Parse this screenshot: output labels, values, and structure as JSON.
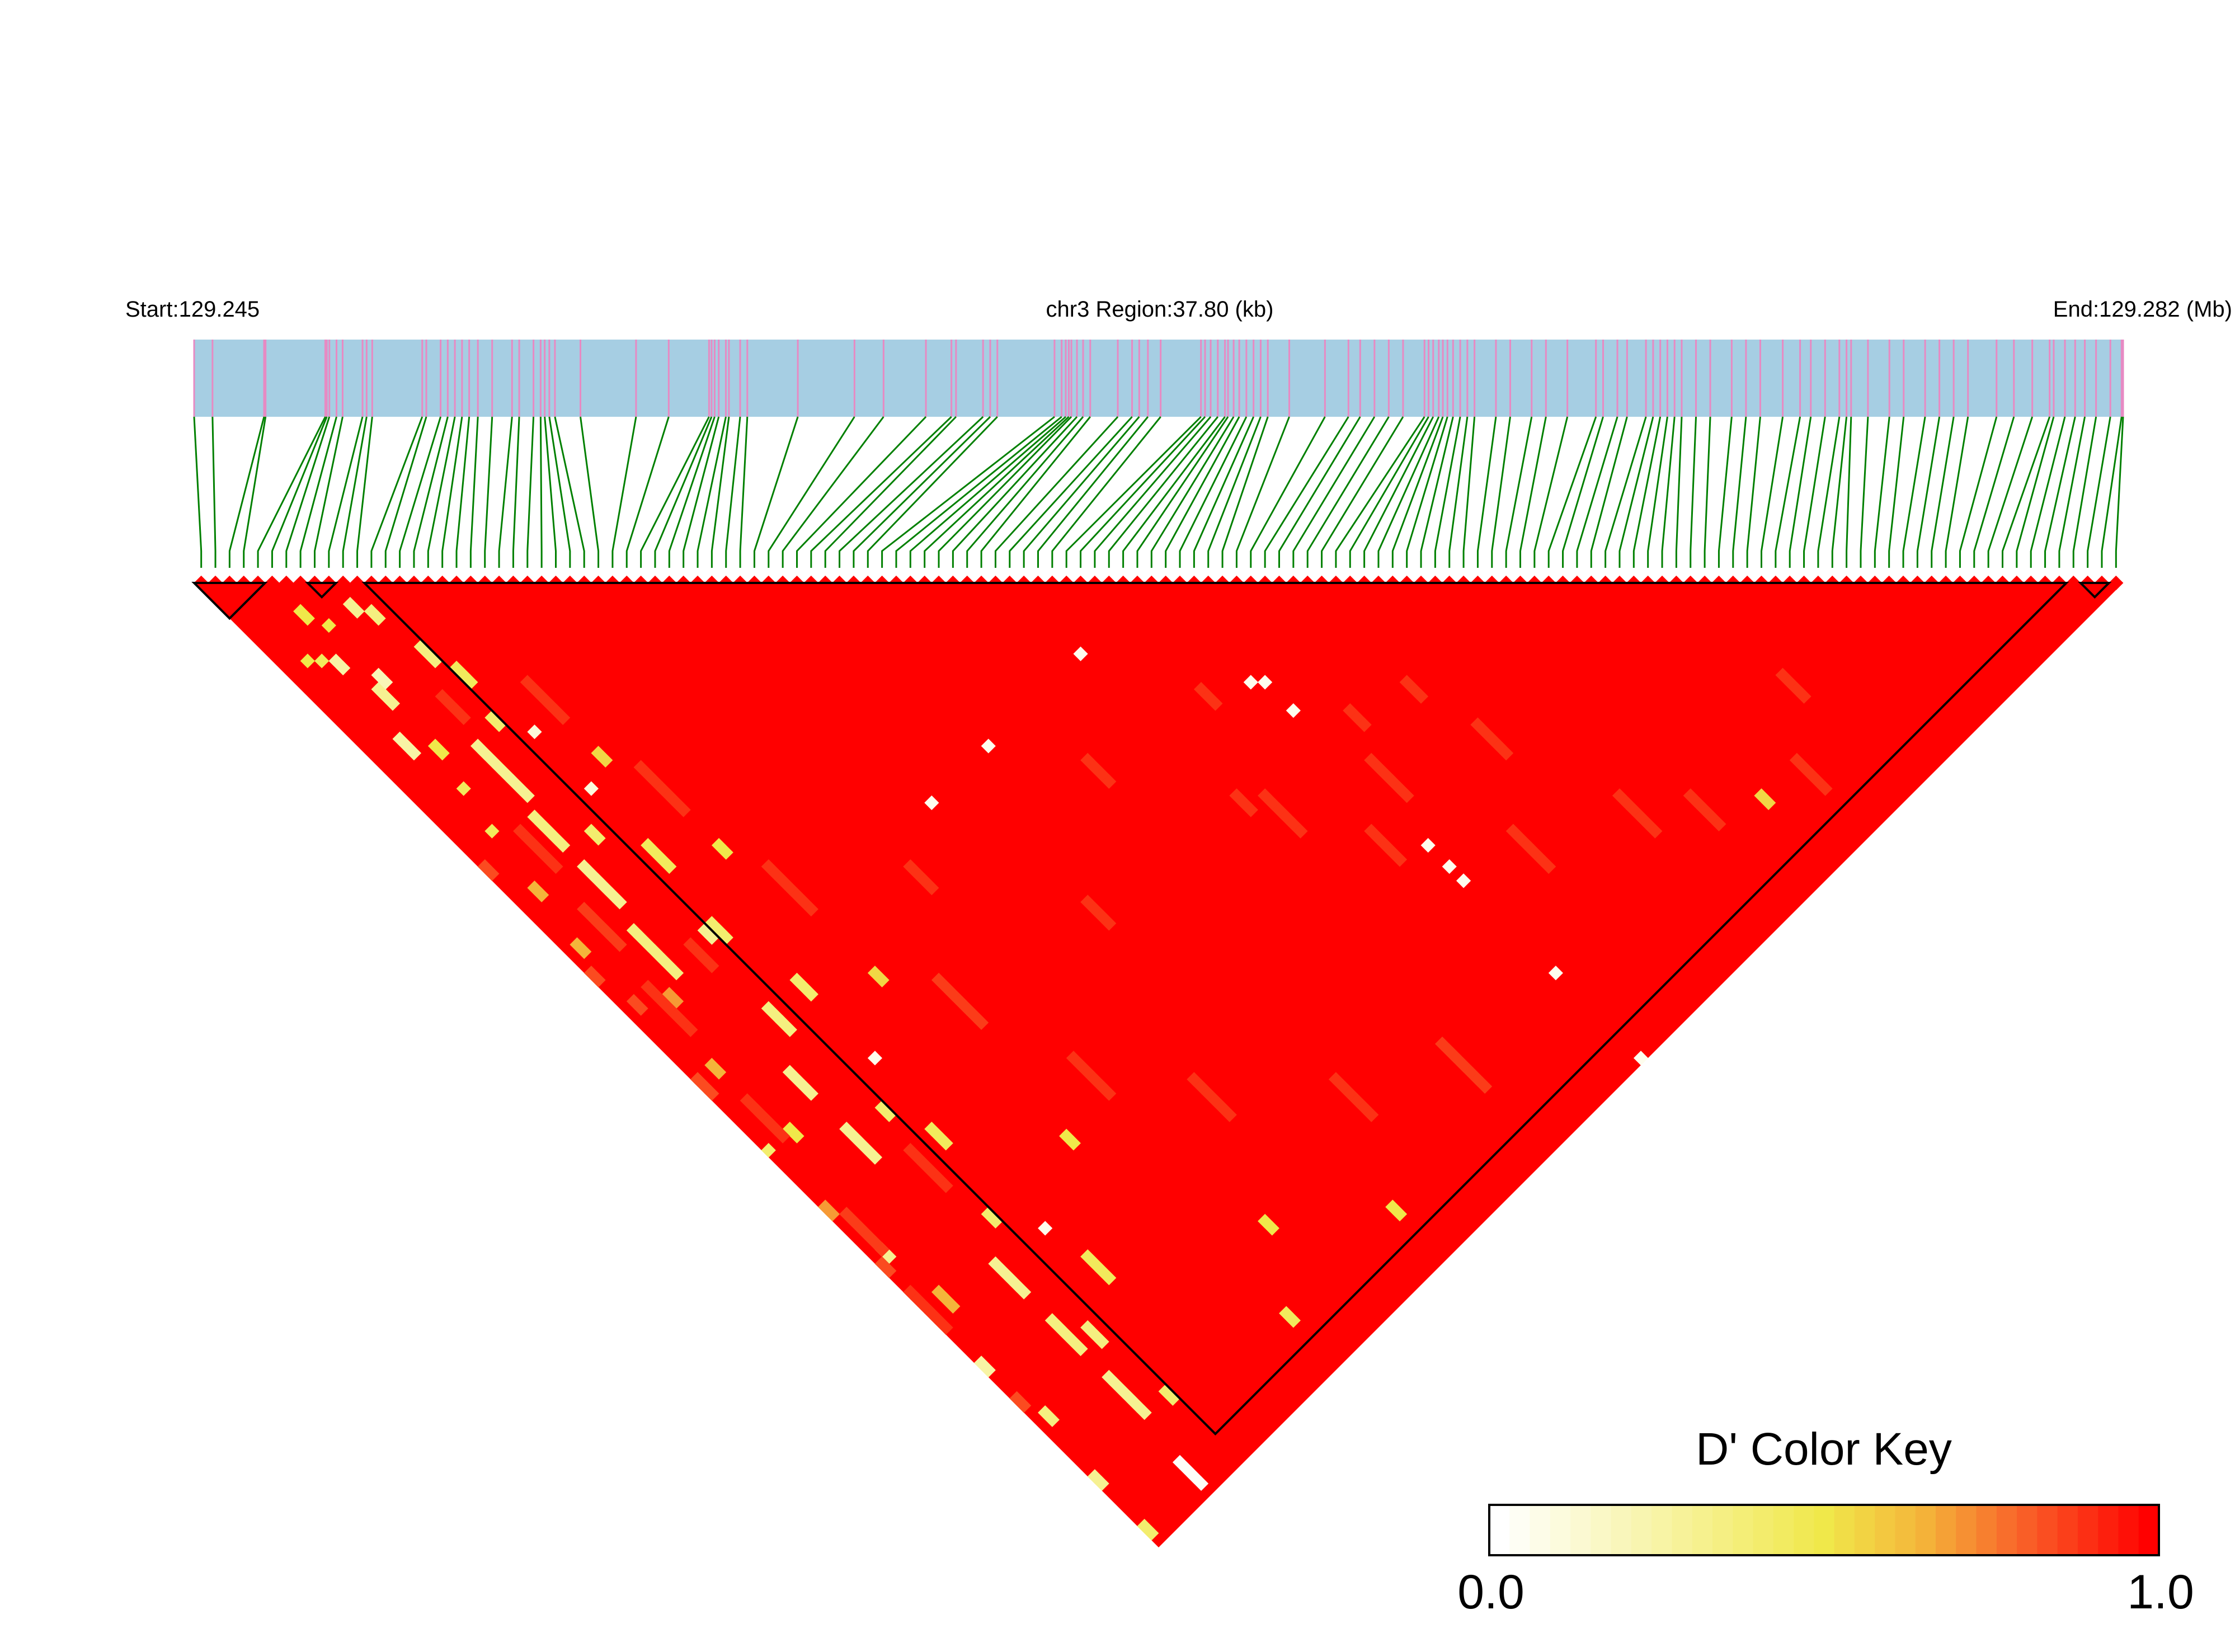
{
  "chart_data": {
    "type": "heatmap",
    "header": {
      "start_label": "Start:129.245",
      "region_label": "chr3 Region:37.80 (kb)",
      "end_label": "End:129.282 (Mb)"
    },
    "region_kb": [
      0,
      37.8
    ],
    "snp_positions_kb": [
      0.0,
      0.36,
      1.37,
      1.4,
      2.57,
      2.6,
      2.65,
      2.79,
      2.91,
      3.3,
      3.38,
      3.49,
      4.47,
      4.55,
      4.83,
      4.97,
      5.11,
      5.25,
      5.39,
      5.56,
      5.84,
      6.23,
      6.37,
      6.65,
      6.79,
      6.87,
      6.96,
      7.07,
      7.57,
      8.66,
      9.3,
      10.09,
      10.14,
      10.2,
      10.28,
      10.42,
      10.48,
      10.7,
      10.84,
      11.83,
      12.94,
      13.51,
      14.34,
      14.84,
      14.93,
      15.46,
      15.6,
      15.74,
      16.86,
      17.0,
      17.08,
      17.14,
      17.19,
      17.3,
      17.42,
      17.56,
      18.1,
      18.38,
      18.52,
      18.69,
      18.94,
      19.73,
      19.81,
      19.92,
      20.06,
      20.2,
      20.26,
      20.37,
      20.48,
      20.62,
      20.76,
      20.9,
      21.04,
      21.46,
      22.16,
      22.62,
      22.85,
      23.13,
      23.41,
      23.69,
      24.11,
      24.19,
      24.28,
      24.39,
      24.47,
      24.56,
      24.67,
      24.81,
      24.95,
      25.09,
      25.51,
      25.79,
      26.21,
      26.49,
      26.91,
      27.47,
      27.61,
      27.89,
      28.08,
      28.45,
      28.59,
      28.73,
      28.87,
      29.01,
      29.15,
      29.43,
      29.71,
      30.13,
      30.41,
      30.69,
      31.13,
      31.47,
      31.68,
      31.96,
      32.24,
      32.38,
      32.47,
      32.8,
      33.22,
      33.5,
      33.92,
      34.2,
      34.48,
      34.76,
      35.32,
      35.66,
      36.02,
      36.36,
      36.44,
      36.66,
      36.86,
      37.05,
      37.27,
      37.55,
      37.77,
      37.8
    ],
    "default_d_prime": 1.0,
    "d_prime_segments_note_format": "[snp_i, snp_j_from, snp_j_to, D']",
    "d_prime_segments": [
      [
        8,
        31,
        38,
        0.3
      ],
      [
        7,
        40,
        44,
        0.35
      ],
      [
        7,
        47,
        52,
        0.3
      ],
      [
        6,
        55,
        61,
        0.35
      ],
      [
        7,
        76,
        79,
        0.3
      ],
      [
        7,
        84,
        88,
        0.3
      ],
      [
        8,
        104,
        108,
        0.3
      ],
      [
        8,
        112,
        116,
        0.35
      ],
      [
        8,
        120,
        125,
        0.3
      ],
      [
        7,
        131,
        134,
        0.02
      ],
      [
        5,
        20,
        22,
        0.3
      ],
      [
        4,
        15,
        16,
        0.25
      ],
      [
        3,
        14,
        14,
        0.45
      ],
      [
        2,
        13,
        13,
        0.5
      ],
      [
        5,
        28,
        29,
        0.5
      ],
      [
        4,
        33,
        33,
        0.45
      ],
      [
        3,
        38,
        38,
        0.45
      ],
      [
        6,
        19,
        20,
        0.2
      ],
      [
        3,
        25,
        27,
        0.25
      ],
      [
        2,
        45,
        46,
        0.65
      ],
      [
        1,
        52,
        53,
        0.65
      ],
      [
        4,
        62,
        63,
        0.7
      ],
      [
        2,
        70,
        71,
        0.65
      ],
      [
        3,
        80,
        81,
        0.5
      ],
      [
        0,
        88,
        89,
        0.7
      ],
      [
        1,
        95,
        96,
        0.3
      ],
      [
        2,
        102,
        104,
        0.65
      ],
      [
        0,
        110,
        111,
        0.25
      ],
      [
        1,
        118,
        119,
        0.35
      ],
      [
        0,
        126,
        127,
        0.3
      ],
      [
        0,
        133,
        134,
        0.4
      ],
      [
        9,
        25,
        28,
        0.9
      ],
      [
        5,
        40,
        45,
        0.9
      ],
      [
        4,
        50,
        55,
        0.88
      ],
      [
        3,
        60,
        66,
        0.9
      ],
      [
        2,
        75,
        80,
        0.9
      ],
      [
        1,
        90,
        95,
        0.88
      ],
      [
        0,
        100,
        105,
        0.9
      ],
      [
        9,
        60,
        63,
        0.9
      ],
      [
        10,
        90,
        95,
        0.9
      ],
      [
        0,
        40,
        41,
        0.85
      ],
      [
        0,
        55,
        56,
        0.85
      ],
      [
        0,
        70,
        72,
        0.85
      ],
      [
        0,
        80,
        80,
        0.4
      ],
      [
        0,
        96,
        97,
        0.85
      ],
      [
        0,
        115,
        116,
        0.85
      ],
      [
        1,
        60,
        61,
        0.85
      ],
      [
        11,
        20,
        22,
        0.35
      ],
      [
        11,
        30,
        31,
        0.4
      ],
      [
        10,
        45,
        46,
        0.4
      ],
      [
        11,
        60,
        61,
        0.3
      ],
      [
        10,
        70,
        73,
        0.35
      ],
      [
        11,
        85,
        86,
        0.4
      ],
      [
        11,
        100,
        101,
        0.4
      ],
      [
        10,
        115,
        117,
        0.35
      ],
      [
        11,
        125,
        126,
        0.4
      ],
      [
        9,
        12,
        13,
        0.3
      ],
      [
        10,
        14,
        15,
        0.35
      ],
      [
        6,
        12,
        12,
        0.5
      ],
      [
        5,
        9,
        10,
        0.5
      ],
      [
        57,
        67,
        67,
        0.05
      ],
      [
        67,
        81,
        81,
        0.05
      ],
      [
        68,
        82,
        82,
        0.05
      ],
      [
        68,
        86,
        86,
        0.05
      ],
      [
        44,
        67,
        67,
        0.05
      ],
      [
        36,
        67,
        67,
        0.05
      ],
      [
        68,
        105,
        105,
        0.05
      ],
      [
        68,
        108,
        108,
        0.05
      ],
      [
        68,
        110,
        110,
        0.05
      ],
      [
        68,
        123,
        123,
        0.05
      ],
      [
        68,
        135,
        135,
        0.05
      ],
      [
        14,
        105,
        105,
        0.05
      ],
      [
        14,
        81,
        81,
        0.05
      ],
      [
        13,
        42,
        42,
        0.1
      ],
      [
        13,
        34,
        34,
        0.1
      ],
      [
        12,
        24,
        26,
        0.45
      ],
      [
        13,
        50,
        53,
        0.45
      ],
      [
        12,
        60,
        62,
        0.4
      ],
      [
        14,
        70,
        72,
        0.4
      ],
      [
        13,
        90,
        92,
        0.45
      ],
      [
        15,
        110,
        113,
        0.45
      ],
      [
        16,
        40,
        41,
        0.55
      ],
      [
        18,
        55,
        56,
        0.5
      ],
      [
        20,
        75,
        76,
        0.55
      ],
      [
        22,
        100,
        101,
        0.5
      ],
      [
        25,
        128,
        129,
        0.45
      ],
      [
        30,
        120,
        121,
        0.5
      ],
      [
        40,
        128,
        129,
        0.5
      ],
      [
        95,
        125,
        126,
        0.55
      ],
      [
        16,
        30,
        35,
        0.9
      ],
      [
        18,
        44,
        50,
        0.9
      ],
      [
        20,
        60,
        66,
        0.9
      ],
      [
        24,
        80,
        86,
        0.88
      ],
      [
        28,
        95,
        100,
        0.9
      ],
      [
        35,
        105,
        110,
        0.9
      ],
      [
        45,
        115,
        120,
        0.9
      ],
      [
        55,
        120,
        126,
        0.88
      ],
      [
        60,
        90,
        95,
        0.9
      ],
      [
        65,
        100,
        104,
        0.9
      ],
      [
        70,
        95,
        100,
        0.9
      ],
      [
        75,
        110,
        115,
        0.9
      ],
      [
        80,
        100,
        104,
        0.9
      ],
      [
        85,
        115,
        120,
        0.9
      ],
      [
        90,
        120,
        124,
        0.9
      ],
      [
        100,
        125,
        129,
        0.9
      ],
      [
        105,
        118,
        121,
        0.9
      ],
      [
        50,
        75,
        78,
        0.9
      ],
      [
        40,
        85,
        88,
        0.9
      ],
      [
        30,
        70,
        73,
        0.9
      ],
      [
        72,
        90,
        92,
        0.9
      ],
      [
        78,
        92,
        94,
        0.9
      ],
      [
        63,
        78,
        80,
        0.9
      ],
      [
        58,
        88,
        90,
        0.9
      ]
    ],
    "ld_blocks": [
      [
        0,
        4
      ],
      [
        8,
        9
      ],
      [
        12,
        131
      ],
      [
        133,
        134
      ]
    ],
    "color_key": {
      "title": "D' Color Key",
      "min_label": "0.0",
      "max_label": "1.0",
      "range": [
        0,
        1
      ],
      "bins": 33,
      "stops": [
        [
          0,
          "#ffffff"
        ],
        [
          0.5,
          "#f0e84a"
        ],
        [
          0.65,
          "#f4b53a"
        ],
        [
          0.8,
          "#f9642a"
        ],
        [
          1,
          "#ff0000"
        ]
      ]
    },
    "colors": {
      "gene_bar": "#a6cee3",
      "snp_tick": "#e78ac3",
      "snp_link": "#008000",
      "block_outline": "#000000"
    }
  }
}
